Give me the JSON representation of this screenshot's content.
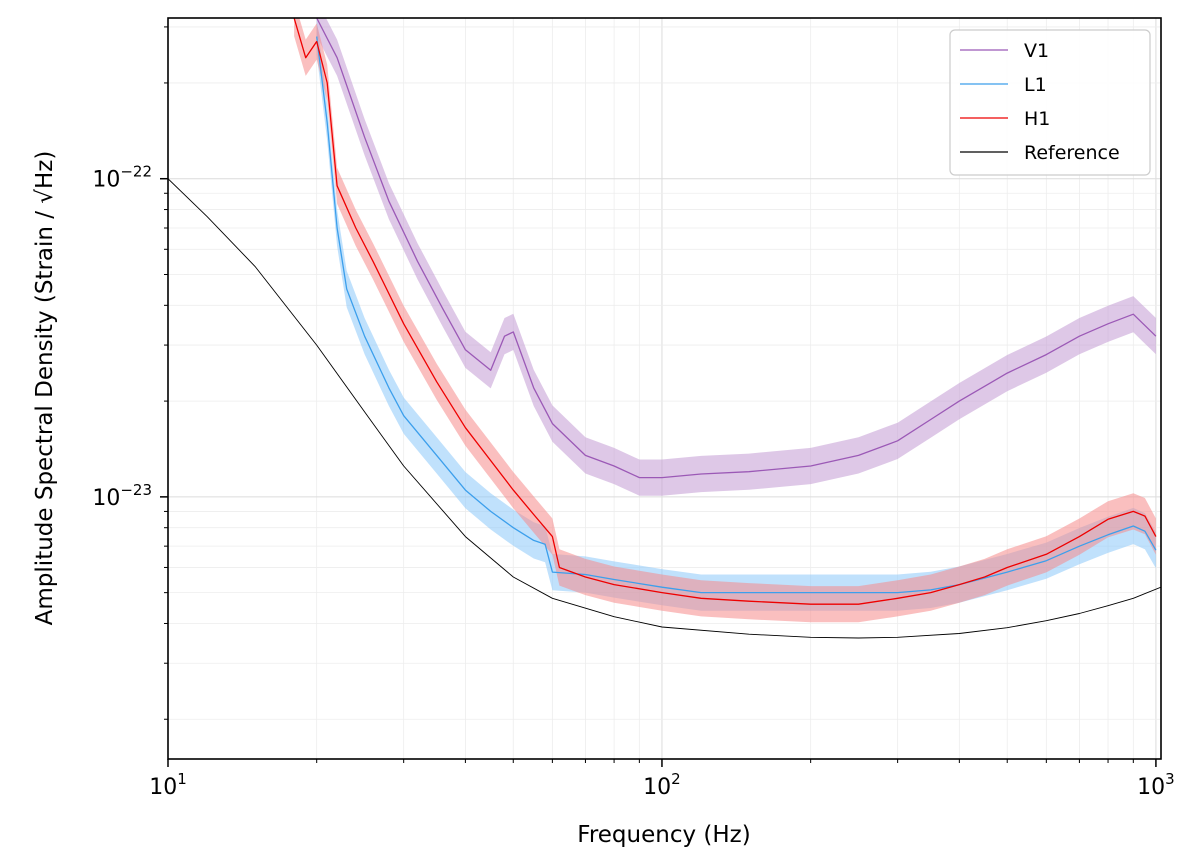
{
  "chart_data": {
    "type": "line",
    "title": "",
    "xlabel": "Frequency (Hz)",
    "ylabel": "Amplitude Spectral Density (Strain / √Hz)",
    "xscale": "log",
    "yscale": "log",
    "xlim": [
      10,
      1024
    ],
    "ylim": [
      1.5e-24,
      3.2e-22
    ],
    "grid": true,
    "legend_placement": "top-right",
    "x_ticks": [
      {
        "value": 10,
        "base": "10",
        "exp": "1"
      },
      {
        "value": 100,
        "base": "10",
        "exp": "2"
      },
      {
        "value": 1000,
        "base": "10",
        "exp": "3"
      }
    ],
    "y_ticks": [
      {
        "value": 1e-23,
        "base": "10",
        "exp": "−23"
      },
      {
        "value": 1e-22,
        "base": "10",
        "exp": "−22"
      }
    ],
    "series": [
      {
        "name": "V1",
        "color": "#9b59b6",
        "band_color": "#c39bd3",
        "x": [
          20,
          22,
          25,
          28,
          32,
          36,
          40,
          45,
          48,
          50,
          55,
          60,
          70,
          80,
          90,
          100,
          120,
          150,
          200,
          250,
          300,
          350,
          400,
          500,
          600,
          700,
          800,
          900,
          1000
        ],
        "y": [
          3.2e-22,
          2.4e-22,
          1.35e-22,
          8.5e-23,
          5.5e-23,
          3.9e-23,
          2.9e-23,
          2.5e-23,
          3.2e-23,
          3.3e-23,
          2.2e-23,
          1.7e-23,
          1.35e-23,
          1.25e-23,
          1.15e-23,
          1.15e-23,
          1.18e-23,
          1.2e-23,
          1.25e-23,
          1.35e-23,
          1.5e-23,
          1.75e-23,
          2e-23,
          2.45e-23,
          2.8e-23,
          3.2e-23,
          3.5e-23,
          3.75e-23,
          3.2e-23
        ]
      },
      {
        "name": "L1",
        "color": "#3c9fec",
        "band_color": "#8cc8fa",
        "x": [
          20,
          21,
          22,
          23,
          25,
          28,
          30,
          35,
          40,
          45,
          50,
          55,
          58,
          60,
          70,
          80,
          100,
          120,
          150,
          200,
          250,
          300,
          350,
          400,
          500,
          600,
          700,
          800,
          900,
          950,
          1000
        ],
        "y": [
          2.8e-22,
          1.5e-22,
          7e-23,
          4.5e-23,
          3.2e-23,
          2.2e-23,
          1.8e-23,
          1.35e-23,
          1.05e-23,
          9e-24,
          8e-24,
          7.3e-24,
          7.1e-24,
          5.8e-24,
          5.7e-24,
          5.5e-24,
          5.2e-24,
          5e-24,
          5e-24,
          5e-24,
          5e-24,
          5e-24,
          5.1e-24,
          5.3e-24,
          5.8e-24,
          6.3e-24,
          7e-24,
          7.6e-24,
          8.1e-24,
          7.8e-24,
          6.8e-24
        ]
      },
      {
        "name": "H1",
        "color": "#ee0000",
        "band_color": "#f58a8a",
        "x": [
          18,
          19,
          20,
          21,
          22,
          24,
          26,
          30,
          35,
          40,
          45,
          50,
          55,
          60,
          62,
          70,
          80,
          100,
          120,
          150,
          200,
          250,
          300,
          350,
          400,
          450,
          500,
          600,
          700,
          800,
          900,
          950,
          1000
        ],
        "y": [
          3.2e-22,
          2.4e-22,
          2.7e-22,
          2e-22,
          9.5e-23,
          7e-23,
          5.5e-23,
          3.5e-23,
          2.3e-23,
          1.65e-23,
          1.3e-23,
          1.05e-23,
          8.8e-24,
          7.5e-24,
          6e-24,
          5.6e-24,
          5.3e-24,
          5e-24,
          4.8e-24,
          4.7e-24,
          4.6e-24,
          4.6e-24,
          4.8e-24,
          5e-24,
          5.3e-24,
          5.6e-24,
          6e-24,
          6.6e-24,
          7.5e-24,
          8.5e-24,
          9e-24,
          8.7e-24,
          7.5e-24
        ]
      },
      {
        "name": "Reference",
        "color": "#000000",
        "x": [
          10,
          12,
          15,
          20,
          25,
          30,
          40,
          50,
          60,
          80,
          100,
          150,
          200,
          250,
          300,
          400,
          500,
          600,
          700,
          800,
          900,
          1024
        ],
        "y": [
          1e-22,
          7.6e-23,
          5.3e-23,
          3e-23,
          1.85e-23,
          1.25e-23,
          7.5e-24,
          5.6e-24,
          4.8e-24,
          4.2e-24,
          3.9e-24,
          3.7e-24,
          3.62e-24,
          3.6e-24,
          3.62e-24,
          3.72e-24,
          3.88e-24,
          4.08e-24,
          4.3e-24,
          4.55e-24,
          4.8e-24,
          5.2e-24
        ]
      }
    ]
  }
}
